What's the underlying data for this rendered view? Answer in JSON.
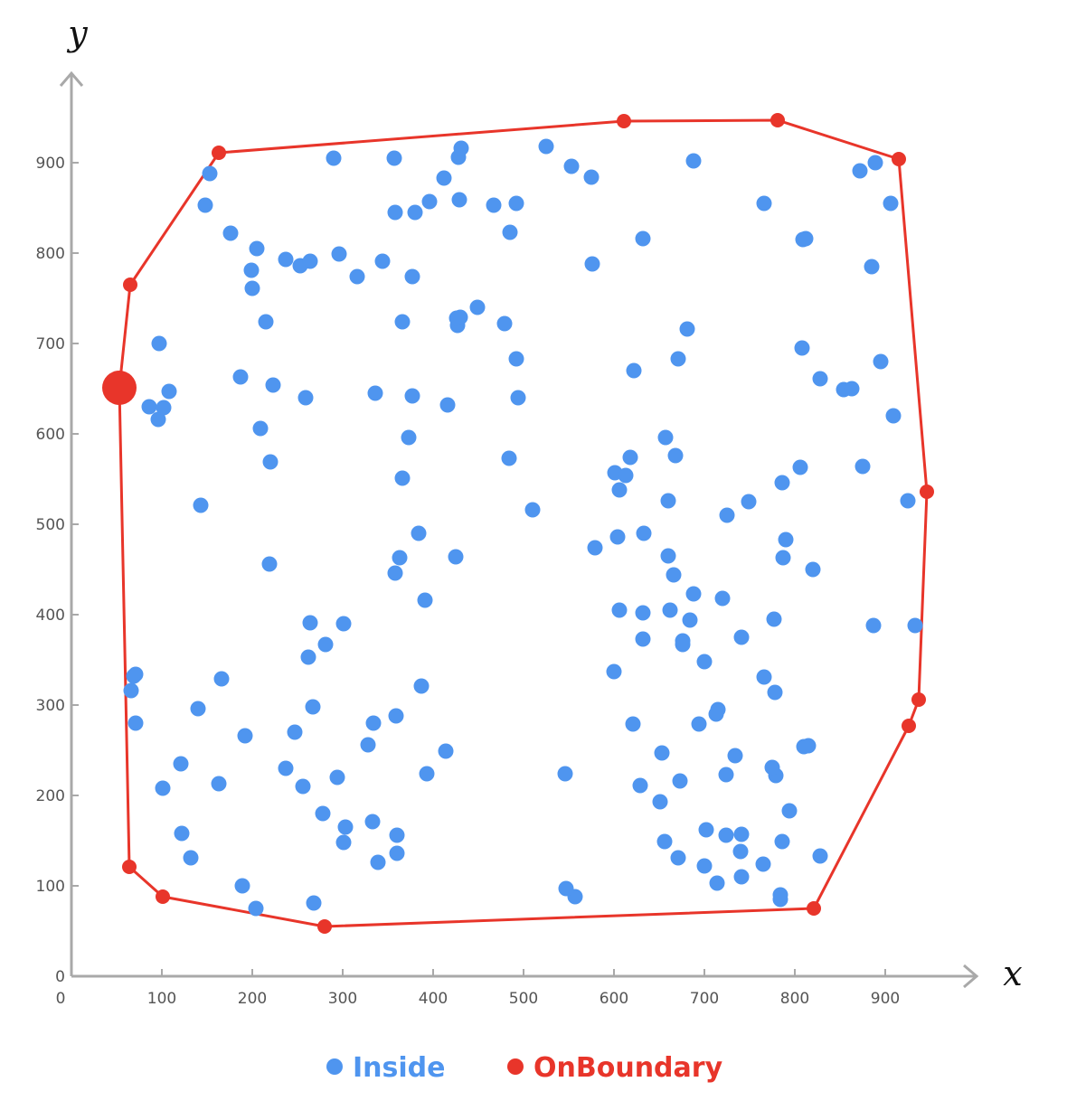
{
  "colors": {
    "inside": "#4f95ef",
    "boundary": "#e8352a",
    "axis": "#a9a9a9",
    "tick_text": "#555555"
  },
  "chart_data": {
    "type": "scatter",
    "xlabel": "x",
    "ylabel": "y",
    "xlim": [
      0,
      1000
    ],
    "ylim": [
      0,
      1000
    ],
    "x_ticks": [
      0,
      100,
      200,
      300,
      400,
      500,
      600,
      700,
      800,
      900
    ],
    "y_ticks": [
      0,
      100,
      200,
      300,
      400,
      500,
      600,
      700,
      800,
      900
    ],
    "grid": false,
    "legend_position": "bottom-center",
    "series": [
      {
        "name": "Inside",
        "color": "#4f95ef",
        "points": [
          [
            153,
            888
          ],
          [
            148,
            853
          ],
          [
            290,
            905
          ],
          [
            357,
            905
          ],
          [
            176,
            822
          ],
          [
            205,
            805
          ],
          [
            199,
            781
          ],
          [
            200,
            761
          ],
          [
            237,
            793
          ],
          [
            253,
            786
          ],
          [
            264,
            791
          ],
          [
            296,
            799
          ],
          [
            316,
            774
          ],
          [
            344,
            791
          ],
          [
            358,
            845
          ],
          [
            380,
            845
          ],
          [
            396,
            857
          ],
          [
            377,
            774
          ],
          [
            428,
            906
          ],
          [
            431,
            916
          ],
          [
            412,
            883
          ],
          [
            429,
            859
          ],
          [
            467,
            853
          ],
          [
            492,
            855
          ],
          [
            485,
            823
          ],
          [
            525,
            918
          ],
          [
            553,
            896
          ],
          [
            575,
            884
          ],
          [
            576,
            788
          ],
          [
            632,
            816
          ],
          [
            688,
            902
          ],
          [
            766,
            855
          ],
          [
            872,
            891
          ],
          [
            889,
            900
          ],
          [
            906,
            855
          ],
          [
            885,
            785
          ],
          [
            809,
            815
          ],
          [
            812,
            816
          ],
          [
            97,
            700
          ],
          [
            108,
            647
          ],
          [
            86,
            630
          ],
          [
            96,
            616
          ],
          [
            102,
            629
          ],
          [
            187,
            663
          ],
          [
            215,
            724
          ],
          [
            223,
            654
          ],
          [
            259,
            640
          ],
          [
            209,
            606
          ],
          [
            220,
            569
          ],
          [
            143,
            521
          ],
          [
            219,
            456
          ],
          [
            366,
            724
          ],
          [
            336,
            645
          ],
          [
            377,
            642
          ],
          [
            373,
            596
          ],
          [
            366,
            551
          ],
          [
            416,
            632
          ],
          [
            427,
            720
          ],
          [
            430,
            729
          ],
          [
            426,
            728
          ],
          [
            449,
            740
          ],
          [
            479,
            722
          ],
          [
            492,
            683
          ],
          [
            494,
            640
          ],
          [
            484,
            573
          ],
          [
            671,
            683
          ],
          [
            681,
            716
          ],
          [
            622,
            670
          ],
          [
            808,
            695
          ],
          [
            828,
            661
          ],
          [
            854,
            649
          ],
          [
            863,
            650
          ],
          [
            895,
            680
          ],
          [
            909,
            620
          ],
          [
            875,
            564
          ],
          [
            806,
            563
          ],
          [
            786,
            546
          ],
          [
            925,
            526
          ],
          [
            933,
            388
          ],
          [
            887,
            388
          ],
          [
            820,
            450
          ],
          [
            790,
            483
          ],
          [
            787,
            463
          ],
          [
            777,
            395
          ],
          [
            766,
            331
          ],
          [
            778,
            314
          ],
          [
            815,
            255
          ],
          [
            779,
            222
          ],
          [
            794,
            183
          ],
          [
            786,
            149
          ],
          [
            828,
            133
          ],
          [
            784,
            85
          ],
          [
            765,
            124
          ],
          [
            740,
            138
          ],
          [
            741,
            157
          ],
          [
            724,
            156
          ],
          [
            702,
            162
          ],
          [
            714,
            103
          ],
          [
            741,
            375
          ],
          [
            725,
            510
          ],
          [
            749,
            525
          ],
          [
            688,
            423
          ],
          [
            676,
            371
          ],
          [
            676,
            367
          ],
          [
            660,
            465
          ],
          [
            657,
            596
          ],
          [
            668,
            576
          ],
          [
            601,
            557
          ],
          [
            606,
            538
          ],
          [
            613,
            554
          ],
          [
            618,
            574
          ],
          [
            510,
            516
          ],
          [
            579,
            474
          ],
          [
            604,
            486
          ],
          [
            633,
            490
          ],
          [
            660,
            526
          ],
          [
            666,
            444
          ],
          [
            606,
            405
          ],
          [
            632,
            402
          ],
          [
            632,
            373
          ],
          [
            600,
            337
          ],
          [
            621,
            279
          ],
          [
            653,
            247
          ],
          [
            651,
            193
          ],
          [
            629,
            211
          ],
          [
            673,
            216
          ],
          [
            662,
            405
          ],
          [
            684,
            394
          ],
          [
            700,
            348
          ],
          [
            720,
            418
          ],
          [
            715,
            295
          ],
          [
            713,
            290
          ],
          [
            694,
            279
          ],
          [
            734,
            244
          ],
          [
            724,
            223
          ],
          [
            775,
            231
          ],
          [
            810,
            254
          ],
          [
            784,
            90
          ],
          [
            741,
            110
          ],
          [
            700,
            122
          ],
          [
            671,
            131
          ],
          [
            656,
            149
          ],
          [
            557,
            88
          ],
          [
            547,
            97
          ],
          [
            546,
            224
          ],
          [
            66,
            316
          ],
          [
            71,
            334
          ],
          [
            69,
            332
          ],
          [
            71,
            280
          ],
          [
            101,
            208
          ],
          [
            121,
            235
          ],
          [
            122,
            158
          ],
          [
            132,
            131
          ],
          [
            140,
            296
          ],
          [
            166,
            329
          ],
          [
            163,
            213
          ],
          [
            189,
            100
          ],
          [
            192,
            266
          ],
          [
            204,
            75
          ],
          [
            237,
            230
          ],
          [
            256,
            210
          ],
          [
            247,
            270
          ],
          [
            262,
            353
          ],
          [
            264,
            391
          ],
          [
            267,
            298
          ],
          [
            268,
            81
          ],
          [
            278,
            180
          ],
          [
            281,
            367
          ],
          [
            294,
            220
          ],
          [
            301,
            148
          ],
          [
            303,
            165
          ],
          [
            301,
            390
          ],
          [
            328,
            256
          ],
          [
            334,
            280
          ],
          [
            333,
            171
          ],
          [
            339,
            126
          ],
          [
            358,
            446
          ],
          [
            359,
            288
          ],
          [
            360,
            156
          ],
          [
            360,
            136
          ],
          [
            363,
            463
          ],
          [
            384,
            490
          ],
          [
            387,
            321
          ],
          [
            391,
            416
          ],
          [
            393,
            224
          ],
          [
            414,
            249
          ],
          [
            425,
            464
          ]
        ]
      },
      {
        "name": "OnBoundary",
        "color": "#e8352a",
        "points": [
          [
            53,
            651
          ],
          [
            65,
            765
          ],
          [
            163,
            911
          ],
          [
            611,
            946
          ],
          [
            781,
            947
          ],
          [
            915,
            904
          ],
          [
            946,
            536
          ],
          [
            937,
            306
          ],
          [
            926,
            277
          ],
          [
            821,
            75
          ],
          [
            280,
            55
          ],
          [
            101,
            88
          ],
          [
            64,
            121
          ]
        ],
        "highlighted_point": [
          53,
          651
        ]
      }
    ]
  }
}
